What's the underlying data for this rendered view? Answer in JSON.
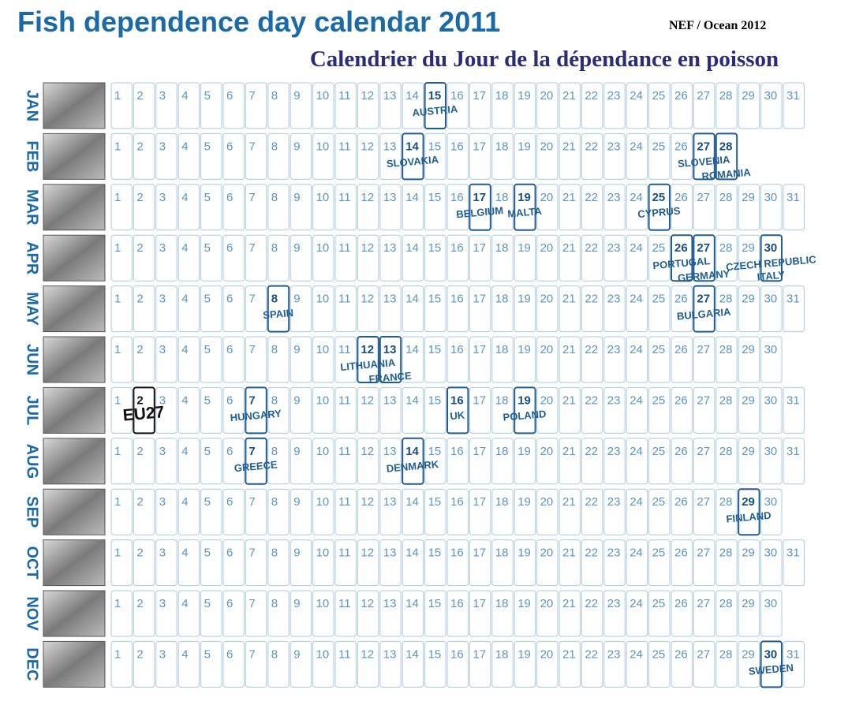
{
  "header": {
    "title": "Fish dependence day calendar 2011",
    "credit": "NEF / Ocean 2012",
    "subtitle": "Calendrier du Jour de la dépendance en poisson"
  },
  "months": [
    {
      "name": "JAN",
      "days": [
        1,
        2,
        3,
        4,
        5,
        6,
        7,
        8,
        9,
        10,
        11,
        12,
        13,
        14,
        15,
        16,
        17,
        18,
        19,
        20,
        21,
        22,
        23,
        24,
        25,
        26,
        27,
        28,
        29,
        30,
        31
      ],
      "highlights": [
        {
          "day": 15,
          "label": "AUSTRIA"
        }
      ]
    },
    {
      "name": "FEB",
      "days": [
        1,
        2,
        3,
        4,
        5,
        6,
        7,
        8,
        9,
        10,
        11,
        12,
        13,
        14,
        15,
        16,
        17,
        18,
        19,
        20,
        21,
        22,
        23,
        24,
        25,
        26,
        27,
        28
      ],
      "highlights": [
        {
          "day": 14,
          "label": "SLOVAKIA"
        },
        {
          "day": 27,
          "label": "SLOVENIA"
        },
        {
          "day": 28,
          "label": "ROMANIA"
        }
      ]
    },
    {
      "name": "MAR",
      "days": [
        1,
        2,
        3,
        4,
        5,
        6,
        7,
        8,
        9,
        10,
        11,
        12,
        13,
        14,
        15,
        16,
        17,
        18,
        19,
        20,
        21,
        22,
        23,
        24,
        25,
        26,
        27,
        28,
        29,
        30,
        31
      ],
      "highlights": [
        {
          "day": 17,
          "label": "BELGIUM"
        },
        {
          "day": 19,
          "label": "MALTA"
        },
        {
          "day": 25,
          "label": "CYPRUS"
        }
      ]
    },
    {
      "name": "APR",
      "days": [
        1,
        2,
        3,
        4,
        5,
        6,
        7,
        8,
        9,
        10,
        11,
        12,
        13,
        14,
        15,
        16,
        17,
        18,
        19,
        20,
        21,
        22,
        23,
        24,
        25,
        26,
        27,
        28,
        29,
        30
      ],
      "highlights": [
        {
          "day": 26,
          "label": "PORTUGAL"
        },
        {
          "day": 27,
          "label": "GERMANY"
        },
        {
          "day": 30,
          "label": "CZECH REPUBLIC"
        },
        {
          "day": 30,
          "label": "ITALY"
        }
      ]
    },
    {
      "name": "MAY",
      "days": [
        1,
        2,
        3,
        4,
        5,
        6,
        7,
        8,
        9,
        10,
        11,
        12,
        13,
        14,
        15,
        16,
        17,
        18,
        19,
        20,
        21,
        22,
        23,
        24,
        25,
        26,
        27,
        28,
        29,
        30,
        31
      ],
      "highlights": [
        {
          "day": 8,
          "label": "SPAIN"
        },
        {
          "day": 27,
          "label": "BULGARIA"
        }
      ]
    },
    {
      "name": "JUN",
      "days": [
        1,
        2,
        3,
        4,
        5,
        6,
        7,
        8,
        9,
        10,
        11,
        12,
        13,
        14,
        15,
        16,
        17,
        18,
        19,
        20,
        21,
        22,
        23,
        24,
        25,
        26,
        27,
        28,
        29,
        30
      ],
      "highlights": [
        {
          "day": 12,
          "label": "LITHUANIA"
        },
        {
          "day": 13,
          "label": "FRANCE"
        }
      ]
    },
    {
      "name": "JUL",
      "days": [
        1,
        2,
        3,
        4,
        5,
        6,
        7,
        8,
        9,
        10,
        11,
        12,
        13,
        14,
        15,
        16,
        17,
        18,
        19,
        20,
        21,
        22,
        23,
        24,
        25,
        26,
        27,
        28,
        29,
        30,
        31
      ],
      "highlights": [
        {
          "day": 2,
          "label": "EU27",
          "color": "#111111"
        },
        {
          "day": 7,
          "label": "HUNGARY"
        },
        {
          "day": 16,
          "label": "UK"
        },
        {
          "day": 19,
          "label": "POLAND"
        }
      ]
    },
    {
      "name": "AUG",
      "days": [
        1,
        2,
        3,
        4,
        5,
        6,
        7,
        8,
        9,
        10,
        11,
        12,
        13,
        14,
        15,
        16,
        17,
        18,
        19,
        20,
        21,
        22,
        23,
        24,
        25,
        26,
        27,
        28,
        29,
        30,
        31
      ],
      "highlights": [
        {
          "day": 7,
          "label": "GREECE"
        },
        {
          "day": 14,
          "label": "DENMARK"
        }
      ]
    },
    {
      "name": "SEP",
      "days": [
        1,
        2,
        3,
        4,
        5,
        6,
        7,
        8,
        9,
        10,
        11,
        12,
        13,
        14,
        15,
        16,
        17,
        18,
        19,
        20,
        21,
        22,
        23,
        24,
        25,
        26,
        27,
        28,
        29,
        30
      ],
      "highlights": [
        {
          "day": 29,
          "label": "FINLAND"
        }
      ]
    },
    {
      "name": "OCT",
      "days": [
        1,
        2,
        3,
        4,
        5,
        6,
        7,
        8,
        9,
        10,
        11,
        12,
        13,
        14,
        15,
        16,
        17,
        18,
        19,
        20,
        21,
        22,
        23,
        24,
        25,
        26,
        27,
        28,
        29,
        30,
        31
      ],
      "highlights": []
    },
    {
      "name": "NOV",
      "days": [
        1,
        2,
        3,
        4,
        5,
        6,
        7,
        8,
        9,
        10,
        11,
        12,
        13,
        14,
        15,
        16,
        17,
        18,
        19,
        20,
        21,
        22,
        23,
        24,
        25,
        26,
        27,
        28,
        29,
        30
      ],
      "highlights": []
    },
    {
      "name": "DEC",
      "days": [
        1,
        2,
        3,
        4,
        5,
        6,
        7,
        8,
        9,
        10,
        11,
        12,
        13,
        14,
        15,
        16,
        17,
        18,
        19,
        20,
        21,
        22,
        23,
        24,
        25,
        26,
        27,
        28,
        29,
        30,
        31
      ],
      "highlights": [
        {
          "day": 30,
          "label": "SWEDEN"
        }
      ]
    }
  ]
}
